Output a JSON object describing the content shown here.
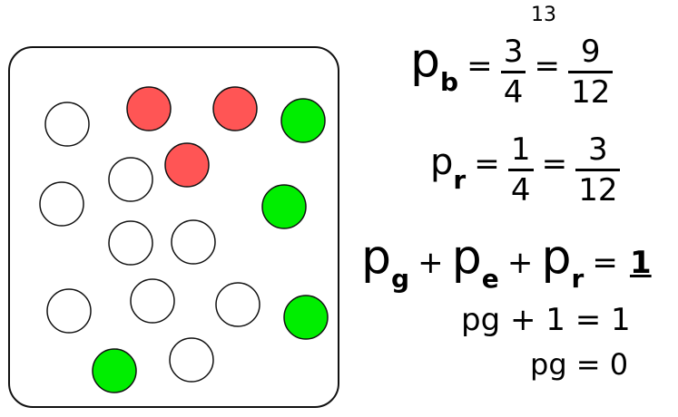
{
  "marbles": [
    {
      "color": "white"
    },
    {
      "color": "red"
    },
    {
      "color": "red"
    },
    {
      "color": "green"
    },
    {
      "color": "white"
    },
    {
      "color": "red"
    },
    {
      "color": "white"
    },
    {
      "color": "green"
    },
    {
      "color": "white"
    },
    {
      "color": "white"
    },
    {
      "color": "white"
    },
    {
      "color": "white"
    },
    {
      "color": "white"
    },
    {
      "color": "green"
    },
    {
      "color": "green"
    },
    {
      "color": "white"
    }
  ],
  "colors": {
    "white": "#ffffff",
    "red": "#ff5555",
    "green": "#00ee00",
    "outline": "#111111"
  },
  "annotation": "13",
  "equations": {
    "pb": {
      "p": "p",
      "sub": "b",
      "eq1": "=",
      "frac1_num": "3",
      "frac1_den": "4",
      "eq2": "=",
      "frac2_num": "9",
      "frac2_den": "12"
    },
    "pr": {
      "p": "p",
      "sub": "r",
      "eq1": "=",
      "frac1_num": "1",
      "frac1_den": "4",
      "eq2": "=",
      "frac2_num": "3",
      "frac2_den": "12"
    },
    "sum": {
      "p1": "p",
      "s1": "g",
      "plus1": "+",
      "p2": "p",
      "s2": "e",
      "plus2": "+",
      "p3": "p",
      "s3": "r",
      "eq": "=",
      "rhs": "1"
    },
    "step1": {
      "text": "pg + 1 = 1"
    },
    "step2": {
      "text": "pg = 0"
    }
  }
}
